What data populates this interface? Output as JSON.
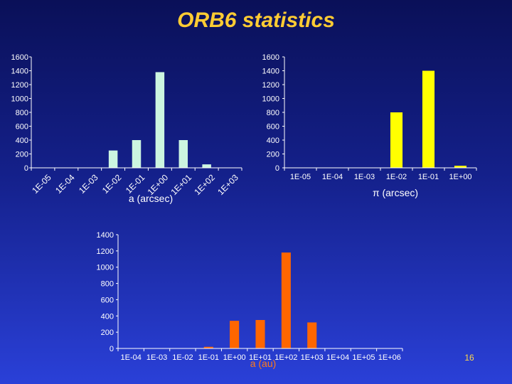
{
  "slide": {
    "title": "ORB6 statistics",
    "page_number": "16"
  },
  "colors": {
    "background_top": "#0a1058",
    "background_bottom": "#2a40d8",
    "title": "#ffcc33",
    "bars_chart1": "#ccf5e0",
    "bars_chart2": "#ffff00",
    "bars_chart3": "#ff6600",
    "axis": "#ffffff"
  },
  "chart_data": [
    {
      "type": "bar",
      "categories": [
        "1E-05",
        "1E-04",
        "1E-03",
        "1E-02",
        "1E-01",
        "1E+00",
        "1E+01",
        "1E+02",
        "1E+03"
      ],
      "values": [
        0,
        0,
        2,
        250,
        400,
        1380,
        400,
        50,
        0
      ],
      "xlabel": "a (arcsec)",
      "ylabel": "",
      "ylim": [
        0,
        1600
      ],
      "yticks": [
        0,
        200,
        400,
        600,
        800,
        1000,
        1200,
        1400,
        1600
      ],
      "tick_label_rotation": "rotated",
      "grid": false,
      "legend": "none"
    },
    {
      "type": "bar",
      "categories": [
        "1E-05",
        "1E-04",
        "1E-03",
        "1E-02",
        "1E-01",
        "1E+00"
      ],
      "values": [
        0,
        0,
        0,
        800,
        1400,
        30
      ],
      "xlabel": "π (arcsec)",
      "ylabel": "",
      "ylim": [
        0,
        1600
      ],
      "yticks": [
        0,
        200,
        400,
        600,
        800,
        1000,
        1200,
        1400,
        1600
      ],
      "grid": false,
      "legend": "none"
    },
    {
      "type": "bar",
      "categories": [
        "1E-04",
        "1E-03",
        "1E-02",
        "1E-01",
        "1E+00",
        "1E+01",
        "1E+02",
        "1E+03",
        "1E+04",
        "1E+05",
        "1E+06"
      ],
      "values": [
        0,
        0,
        0,
        20,
        340,
        350,
        1180,
        320,
        0,
        0,
        0
      ],
      "xlabel": "a (au)",
      "ylabel": "",
      "ylim": [
        0,
        1400
      ],
      "yticks": [
        0,
        200,
        400,
        600,
        800,
        1000,
        1200,
        1400
      ],
      "grid": false,
      "legend": "none"
    }
  ]
}
